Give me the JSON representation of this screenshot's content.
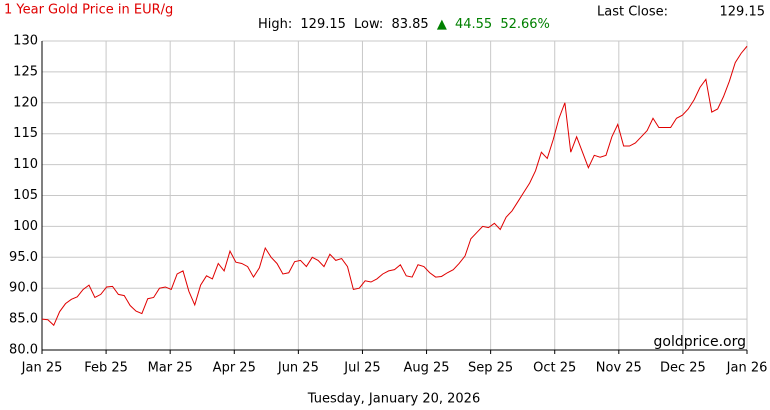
{
  "chart_data": {
    "type": "line",
    "title": "1 Year Gold Price in EUR/g",
    "last_close_label": "Last Close:",
    "last_close": 129.15,
    "stats": {
      "high_label": "High:",
      "high": 129.15,
      "low_label": "Low:",
      "low": 83.85,
      "arrow": "▲",
      "change": 44.55,
      "change_pct": "52.66%"
    },
    "watermark": "goldprice.org",
    "footer": "Tuesday, January 20, 2026",
    "x_labels": [
      "Jan 25",
      "Feb 25",
      "Mar 25",
      "Apr 25",
      "Jun 25",
      "Jul 25",
      "Aug 25",
      "Sep 25",
      "Oct 25",
      "Nov 25",
      "Dec 25",
      "Jan 26"
    ],
    "color": "#e00000",
    "grid": true,
    "ylim": [
      80,
      130
    ],
    "yticks": [
      {
        "value": 80,
        "label": "80.0"
      },
      {
        "value": 85,
        "label": "85.0"
      },
      {
        "value": 90,
        "label": "90.0"
      },
      {
        "value": 95,
        "label": "95.0"
      },
      100,
      105,
      110,
      115,
      120,
      125,
      130
    ],
    "values": [
      85.0,
      84.9,
      84.0,
      86.2,
      87.5,
      88.2,
      88.6,
      89.8,
      90.5,
      88.5,
      89.0,
      90.2,
      90.3,
      89.0,
      88.8,
      87.2,
      86.3,
      85.9,
      88.3,
      88.5,
      90.0,
      90.2,
      89.8,
      92.3,
      92.8,
      89.5,
      87.3,
      90.5,
      92.0,
      91.5,
      94.0,
      92.8,
      96.0,
      94.2,
      94.0,
      93.5,
      91.8,
      93.3,
      96.5,
      95.0,
      94.0,
      92.3,
      92.5,
      94.3,
      94.5,
      93.5,
      95.0,
      94.5,
      93.5,
      95.5,
      94.5,
      94.8,
      93.5,
      89.8,
      90.0,
      91.2,
      91.0,
      91.5,
      92.3,
      92.8,
      93.0,
      93.8,
      92.0,
      91.8,
      93.8,
      93.5,
      92.5,
      91.8,
      91.9,
      92.5,
      93.0,
      94.0,
      95.2,
      98.0,
      99.0,
      100.0,
      99.8,
      100.5,
      99.5,
      101.5,
      102.5,
      104.0,
      105.5,
      107.0,
      109.0,
      112.0,
      111.0,
      114.0,
      117.5,
      120.0,
      112.0,
      114.5,
      112.0,
      109.5,
      111.5,
      111.2,
      111.5,
      114.5,
      116.5,
      113.0,
      113.0,
      113.5,
      114.5,
      115.5,
      117.5,
      116.0,
      116.0,
      116.0,
      117.5,
      118.0,
      119.0,
      120.5,
      122.5,
      123.8,
      118.5,
      119.0,
      121.0,
      123.5,
      126.5,
      128.0,
      129.15
    ]
  }
}
